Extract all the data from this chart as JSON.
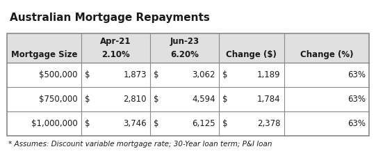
{
  "title": "Australian Mortgage Repayments",
  "footnote": "* Assumes: Discount variable mortgage rate; 30-Year loan term; P&I loan",
  "header_bg": "#e0e0e0",
  "border_color": "#888888",
  "title_fontsize": 11,
  "table_fontsize": 8.5,
  "footnote_fontsize": 7.5,
  "col_boundaries": [
    0.0,
    0.205,
    0.395,
    0.585,
    0.765,
    1.0
  ],
  "header1": {
    "Apr-21": 1,
    "Jun-23": 2
  },
  "header2": [
    "Mortgage Size",
    "2.10%",
    "6.20%",
    "Change ($)",
    "Change (%)"
  ],
  "rows": [
    [
      "$500,000",
      "$",
      "1,873",
      "$",
      "3,062",
      "$",
      "1,189",
      "63%"
    ],
    [
      "$750,000",
      "$",
      "2,810",
      "$",
      "4,594",
      "$",
      "1,784",
      "63%"
    ],
    [
      "$1,000,000",
      "$",
      "3,746",
      "$",
      "6,125",
      "$",
      "2,378",
      "63%"
    ]
  ]
}
